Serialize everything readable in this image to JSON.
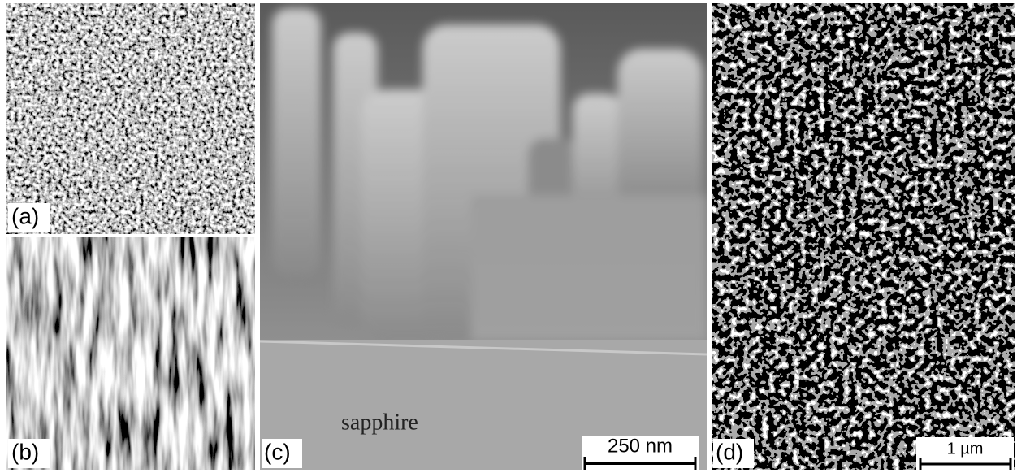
{
  "panels": [
    {
      "label": "(a)"
    },
    {
      "label": "(b)"
    },
    {
      "label": "(c)",
      "annotation": "sapphire",
      "scale_bar": "250 nm"
    },
    {
      "label": "(d)",
      "scale_bar": "1 µm"
    }
  ]
}
